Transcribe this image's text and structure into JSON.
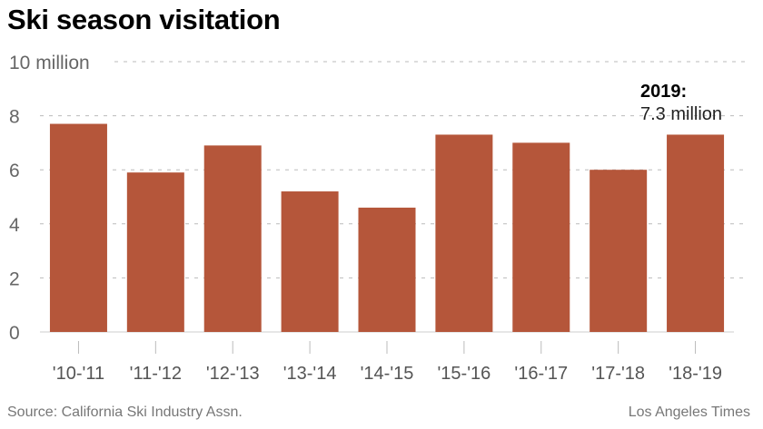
{
  "chart_data": {
    "type": "bar",
    "title": "Ski season visitation",
    "categories": [
      "'10-'11",
      "'11-'12",
      "'12-'13",
      "'13-'14",
      "'14-'15",
      "'15-'16",
      "'16-'17",
      "'17-'18",
      "'18-'19"
    ],
    "values": [
      7.7,
      5.9,
      6.9,
      5.2,
      4.6,
      7.3,
      7.0,
      6.0,
      7.3
    ],
    "ylim": [
      0,
      10
    ],
    "yticks": [
      0,
      2,
      4,
      6,
      8,
      10
    ],
    "ytick_labels": [
      "0",
      "2",
      "4",
      "6",
      "8",
      "10 million"
    ],
    "bar_color": "#b5563a",
    "grid": true,
    "annotation": {
      "title": "2019:",
      "text": "7.3 million"
    },
    "source": "Source: California Ski Industry Assn.",
    "credit": "Los Angeles Times"
  }
}
